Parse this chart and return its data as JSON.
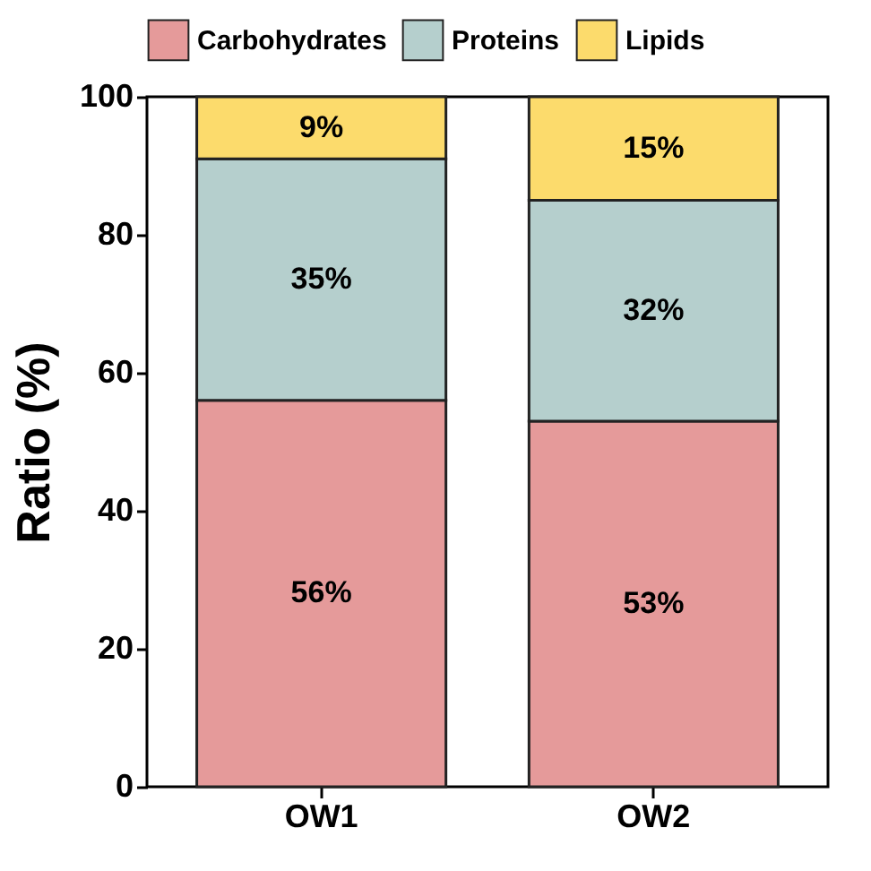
{
  "chart_data": {
    "type": "bar",
    "stacked": true,
    "ylabel": "Ratio (%)",
    "categories": [
      "OW1",
      "OW2"
    ],
    "series": [
      {
        "name": "Carbohydrates",
        "color": "#e59a9a",
        "values": [
          56,
          53
        ],
        "value_labels": [
          "56%",
          "53%"
        ]
      },
      {
        "name": "Proteins",
        "color": "#b5cfcd",
        "values": [
          35,
          32
        ],
        "value_labels": [
          "35%",
          "32%"
        ]
      },
      {
        "name": "Lipids",
        "color": "#fcdb6c",
        "values": [
          9,
          15
        ],
        "value_labels": [
          "9%",
          "15%"
        ]
      }
    ],
    "ylim": [
      0,
      100
    ],
    "yticks": [
      0,
      20,
      40,
      60,
      80,
      100
    ],
    "grid": false,
    "legend": "top"
  }
}
